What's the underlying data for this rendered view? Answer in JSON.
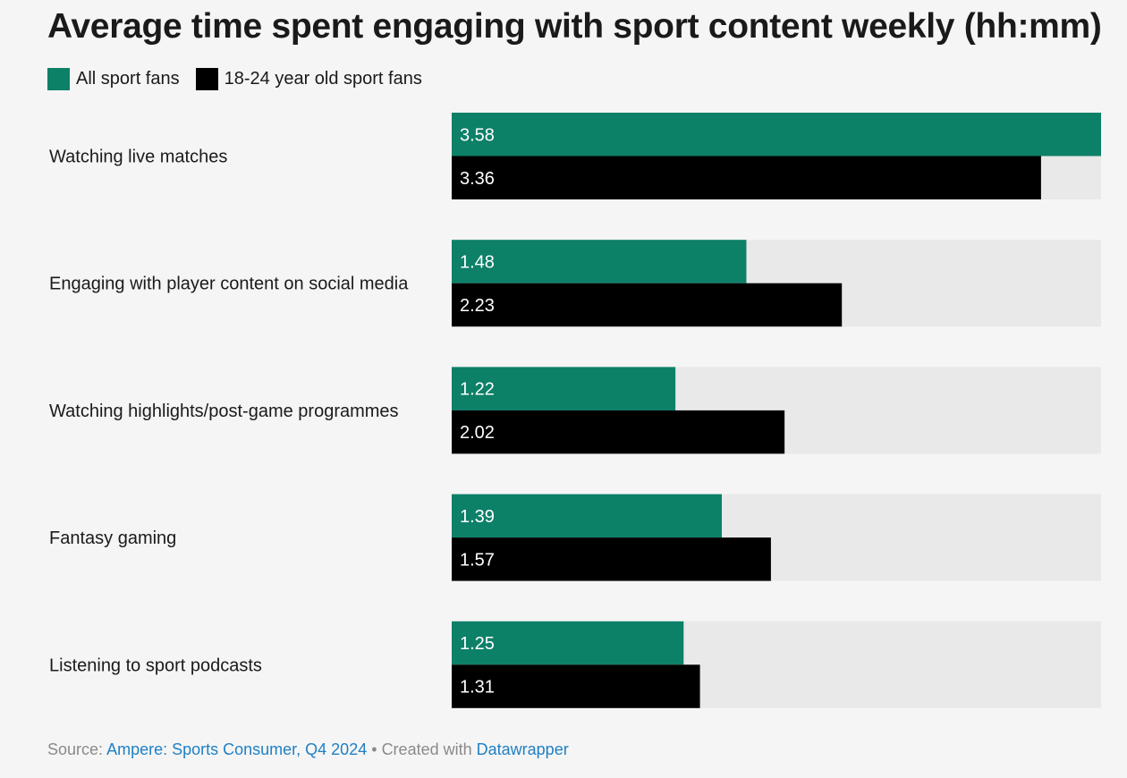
{
  "colors": {
    "all_fans": "#0d8068",
    "young_fans": "#000000",
    "track": "#e9e9e9",
    "value_label": "#ffffff",
    "category_label": "#1a1a1a",
    "link": "#1f7fc4"
  },
  "chart_data": {
    "type": "bar",
    "orientation": "horizontal",
    "title": "Average time spent engaging with sport content weekly (hh:mm)",
    "categories": [
      "Watching live matches",
      "Engaging with player content on social media",
      "Watching highlights/post-game programmes",
      "Fantasy gaming",
      "Listening to sport podcasts"
    ],
    "series": [
      {
        "name": "All sport fans",
        "values": [
          238,
          108,
          82,
          99,
          85
        ],
        "labels": [
          "3.58",
          "1.48",
          "1.22",
          "1.39",
          "1.25"
        ]
      },
      {
        "name": "18-24 year old sport fans",
        "values": [
          216,
          143,
          122,
          117,
          91
        ],
        "labels": [
          "3.36",
          "2.23",
          "2.02",
          "1.57",
          "1.31"
        ]
      }
    ],
    "value_unit": "minutes",
    "xlim": [
      0,
      238
    ],
    "grid": false,
    "legend": "top-left"
  },
  "footer": {
    "source_prefix": "Source:",
    "source_name": "Ampere: Sports Consumer, Q4 2024",
    "separator": "•",
    "created_with": "Created with",
    "tool": "Datawrapper"
  }
}
